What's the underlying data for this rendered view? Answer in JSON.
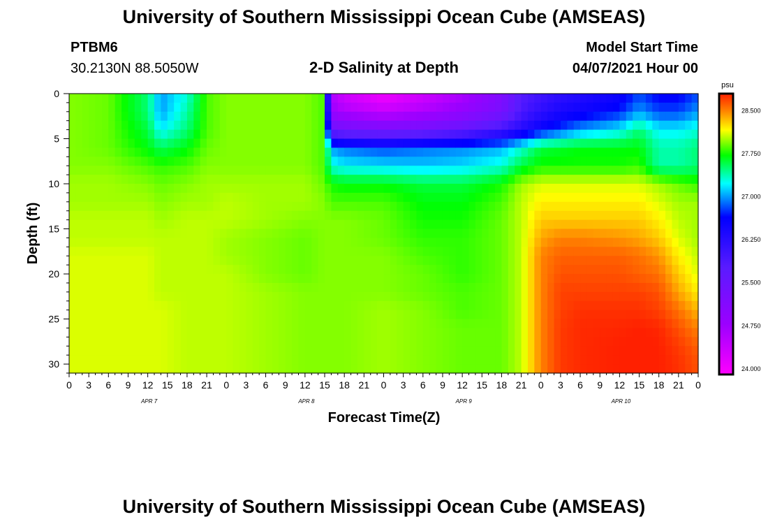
{
  "header": {
    "title": "University of Southern Mississippi Ocean Cube (AMSEAS)",
    "station_id": "PTBM6",
    "coordinates": "30.2130N  88.5050W",
    "subtitle": "2-D Salinity at Depth",
    "model_start_label": "Model Start Time",
    "model_start_value": "04/07/2021 Hour 00"
  },
  "footer": {
    "title": "University of Southern Mississippi Ocean Cube (AMSEAS)"
  },
  "chart_data": {
    "type": "heatmap",
    "title": "2-D Salinity at Depth",
    "xlabel": "Forecast Time(Z)",
    "ylabel": "Depth (ft)",
    "x_hours": [
      0,
      96
    ],
    "x_tick_labels": [
      "0",
      "3",
      "6",
      "9",
      "12",
      "15",
      "18",
      "21",
      "0",
      "3",
      "6",
      "9",
      "12",
      "15",
      "18",
      "21",
      "0",
      "3",
      "6",
      "9",
      "12",
      "15",
      "18",
      "21",
      "0",
      "3",
      "6",
      "9",
      "12",
      "15",
      "18",
      "21",
      "0"
    ],
    "day_labels": [
      {
        "label": "APR 7",
        "hour": 12
      },
      {
        "label": "APR 8",
        "hour": 36
      },
      {
        "label": "APR 9",
        "hour": 60
      },
      {
        "label": "APR 10",
        "hour": 84
      }
    ],
    "ylim": [
      0,
      31
    ],
    "y_ticks": [
      0,
      5,
      10,
      15,
      20,
      25,
      30
    ],
    "colorbar": {
      "unit": "psu",
      "range": [
        23.9,
        28.8
      ],
      "tick_labels": [
        "24.000",
        "24.750",
        "25.500",
        "26.250",
        "27.000",
        "27.750",
        "28.500"
      ],
      "tick_values": [
        24.0,
        24.75,
        25.5,
        26.25,
        27.0,
        27.75,
        28.5
      ]
    },
    "salinity_grid": {
      "depths_ft": [
        0,
        2,
        4,
        6,
        8,
        10,
        12,
        14,
        16,
        18,
        20,
        22,
        24,
        26,
        28,
        30
      ],
      "hours": [
        0,
        6,
        12,
        14,
        18,
        21,
        24,
        30,
        36,
        39,
        40,
        42,
        48,
        54,
        60,
        66,
        69,
        72,
        75,
        78,
        84,
        87,
        90,
        93,
        96
      ],
      "values": [
        [
          27.95,
          27.9,
          27.5,
          27.0,
          27.3,
          27.85,
          27.95,
          27.95,
          27.95,
          27.85,
          24.6,
          24.3,
          24.0,
          24.3,
          24.6,
          25.2,
          25.8,
          26.0,
          26.2,
          26.3,
          26.5,
          26.8,
          26.6,
          26.6,
          26.8
        ],
        [
          27.95,
          27.9,
          27.5,
          27.0,
          27.4,
          27.85,
          27.95,
          27.95,
          27.95,
          27.85,
          24.8,
          24.6,
          24.4,
          24.6,
          24.9,
          25.3,
          25.9,
          26.2,
          26.4,
          26.5,
          26.7,
          27.0,
          26.8,
          26.8,
          27.0
        ],
        [
          27.95,
          27.9,
          27.6,
          27.2,
          27.5,
          27.85,
          27.95,
          27.95,
          27.95,
          27.85,
          25.5,
          25.4,
          25.3,
          25.4,
          25.6,
          26.0,
          26.3,
          26.6,
          26.8,
          27.0,
          27.2,
          27.5,
          27.2,
          27.2,
          27.3
        ],
        [
          27.95,
          27.9,
          27.7,
          27.55,
          27.7,
          27.9,
          27.95,
          27.95,
          27.95,
          27.85,
          27.0,
          26.9,
          26.8,
          26.9,
          26.95,
          27.05,
          27.3,
          27.6,
          27.65,
          27.7,
          27.7,
          27.7,
          27.4,
          27.4,
          27.5
        ],
        [
          27.95,
          27.95,
          27.85,
          27.8,
          27.85,
          27.95,
          27.95,
          27.95,
          27.95,
          27.85,
          27.3,
          27.2,
          27.15,
          27.1,
          27.15,
          27.3,
          27.6,
          27.75,
          27.75,
          27.75,
          27.75,
          27.8,
          27.4,
          27.4,
          27.5
        ],
        [
          28.0,
          28.0,
          27.95,
          27.9,
          27.95,
          28.0,
          28.0,
          28.0,
          28.0,
          27.9,
          27.75,
          27.7,
          27.7,
          27.6,
          27.6,
          27.75,
          28.0,
          28.1,
          28.1,
          28.1,
          28.1,
          28.1,
          28.0,
          27.9,
          27.8
        ],
        [
          28.0,
          28.0,
          28.0,
          27.95,
          28.0,
          28.0,
          28.05,
          28.0,
          28.0,
          27.95,
          27.85,
          27.85,
          27.85,
          27.7,
          27.7,
          27.85,
          28.05,
          28.2,
          28.2,
          28.2,
          28.2,
          28.2,
          28.1,
          28.0,
          28.0
        ],
        [
          28.05,
          28.05,
          28.05,
          28.0,
          28.05,
          28.05,
          28.05,
          28.0,
          27.95,
          27.95,
          27.95,
          27.95,
          27.9,
          27.75,
          27.75,
          27.9,
          28.05,
          28.3,
          28.3,
          28.3,
          28.3,
          28.3,
          28.2,
          28.05,
          28.0
        ],
        [
          28.05,
          28.05,
          28.05,
          28.05,
          28.05,
          28.05,
          28.0,
          27.95,
          27.9,
          27.95,
          27.95,
          27.95,
          27.9,
          27.8,
          27.8,
          27.9,
          28.05,
          28.4,
          28.5,
          28.5,
          28.45,
          28.4,
          28.3,
          28.1,
          28.0
        ],
        [
          28.1,
          28.1,
          28.1,
          28.05,
          28.05,
          28.05,
          28.0,
          27.95,
          27.9,
          27.95,
          27.95,
          27.95,
          27.95,
          27.85,
          27.8,
          27.9,
          28.05,
          28.5,
          28.6,
          28.6,
          28.6,
          28.55,
          28.45,
          28.2,
          28.05
        ],
        [
          28.1,
          28.1,
          28.1,
          28.05,
          28.05,
          28.05,
          28.05,
          27.95,
          27.9,
          27.95,
          27.95,
          27.95,
          27.95,
          27.9,
          27.8,
          27.9,
          28.05,
          28.5,
          28.65,
          28.65,
          28.65,
          28.6,
          28.55,
          28.3,
          28.1
        ],
        [
          28.1,
          28.1,
          28.1,
          28.05,
          28.05,
          28.05,
          28.05,
          28.0,
          27.95,
          27.95,
          27.95,
          27.95,
          27.95,
          27.9,
          27.85,
          27.9,
          28.05,
          28.5,
          28.7,
          28.7,
          28.7,
          28.7,
          28.65,
          28.4,
          28.2
        ],
        [
          28.1,
          28.1,
          28.1,
          28.1,
          28.05,
          28.05,
          28.05,
          28.0,
          27.95,
          27.95,
          27.95,
          27.95,
          28.0,
          27.95,
          27.85,
          27.9,
          28.05,
          28.5,
          28.7,
          28.75,
          28.75,
          28.75,
          28.7,
          28.55,
          28.35
        ],
        [
          28.1,
          28.1,
          28.1,
          28.1,
          28.05,
          28.05,
          28.05,
          28.0,
          27.95,
          27.95,
          27.95,
          27.95,
          28.0,
          27.95,
          27.9,
          27.9,
          28.05,
          28.5,
          28.72,
          28.77,
          28.78,
          28.8,
          28.78,
          28.65,
          28.5
        ],
        [
          28.1,
          28.1,
          28.1,
          28.1,
          28.05,
          28.05,
          28.05,
          28.0,
          27.95,
          27.95,
          27.95,
          27.95,
          28.0,
          27.95,
          27.9,
          27.9,
          28.05,
          28.5,
          28.72,
          28.77,
          28.8,
          28.82,
          28.8,
          28.72,
          28.6
        ],
        [
          28.1,
          28.1,
          28.1,
          28.1,
          28.05,
          28.05,
          28.05,
          28.0,
          27.95,
          27.95,
          27.95,
          27.95,
          28.0,
          27.95,
          27.9,
          27.9,
          28.05,
          28.5,
          28.72,
          28.77,
          28.8,
          28.82,
          28.8,
          28.75,
          28.65
        ]
      ]
    }
  }
}
